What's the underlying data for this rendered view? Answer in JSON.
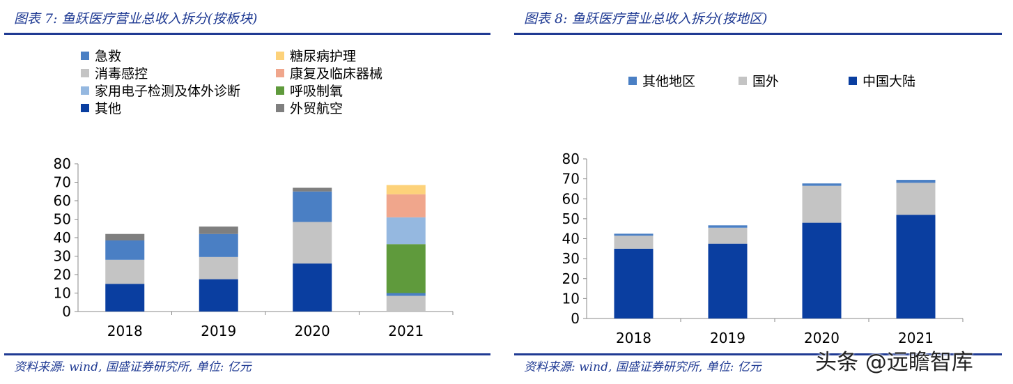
{
  "left": {
    "title": "图表 7:  鱼跃医疗营业总收入拆分(按板块)",
    "source": "资料来源: wind, 国盛证券研究所, 单位: 亿元"
  },
  "right": {
    "title": "图表 8:  鱼跃医疗营业总收入拆分(按地区)",
    "source": "资料来源: wind, 国盛证券研究所, 单位: 亿元"
  },
  "watermark": "头条 @远瞻智库",
  "chart_data": [
    {
      "type": "bar",
      "stacked": true,
      "categories": [
        "2018",
        "2019",
        "2020",
        "2021"
      ],
      "ylim": [
        0,
        80
      ],
      "yticks": [
        0,
        10,
        20,
        30,
        40,
        50,
        60,
        70,
        80
      ],
      "legend_placement": "top",
      "series": [
        {
          "name": "其他",
          "color": "#0a3ea0",
          "values": [
            15,
            17.5,
            26,
            0
          ]
        },
        {
          "name": "消毒感控",
          "color": "#c4c4c4",
          "values": [
            13,
            12,
            22.5,
            8.5
          ]
        },
        {
          "name": "急救",
          "color": "#4a7fc4",
          "values": [
            10.5,
            12.5,
            16.5,
            1.5
          ]
        },
        {
          "name": "外贸航空",
          "color": "#7f7f7f",
          "values": [
            3.5,
            4,
            2,
            0
          ]
        },
        {
          "name": "呼吸制氧",
          "color": "#5f9a3c",
          "values": [
            0,
            0,
            0,
            26.5
          ]
        },
        {
          "name": "家用电子检测及体外诊断",
          "color": "#95b8e0",
          "values": [
            0,
            0,
            0,
            14.5
          ]
        },
        {
          "name": "康复及临床器械",
          "color": "#f0a68c",
          "values": [
            0,
            0,
            0,
            12.5
          ]
        },
        {
          "name": "糖尿病护理",
          "color": "#fdd27a",
          "values": [
            0,
            0,
            0,
            5
          ]
        }
      ],
      "legend_order": [
        "急救",
        "糖尿病护理",
        "消毒感控",
        "康复及临床器械",
        "家用电子检测及体外诊断",
        "呼吸制氧",
        "其他",
        "外贸航空"
      ]
    },
    {
      "type": "bar",
      "stacked": true,
      "categories": [
        "2018",
        "2019",
        "2020",
        "2021"
      ],
      "ylim": [
        0,
        80
      ],
      "yticks": [
        0,
        10,
        20,
        30,
        40,
        50,
        60,
        70,
        80
      ],
      "legend_placement": "top",
      "series": [
        {
          "name": "中国大陆",
          "color": "#0a3ea0",
          "values": [
            35,
            37.5,
            48,
            52
          ]
        },
        {
          "name": "国外",
          "color": "#c4c4c4",
          "values": [
            6.5,
            8,
            18.5,
            16
          ]
        },
        {
          "name": "其他地区",
          "color": "#4a7fc4",
          "values": [
            1,
            1.2,
            1.2,
            1.5
          ]
        }
      ],
      "legend_order": [
        "其他地区",
        "国外",
        "中国大陆"
      ]
    }
  ]
}
